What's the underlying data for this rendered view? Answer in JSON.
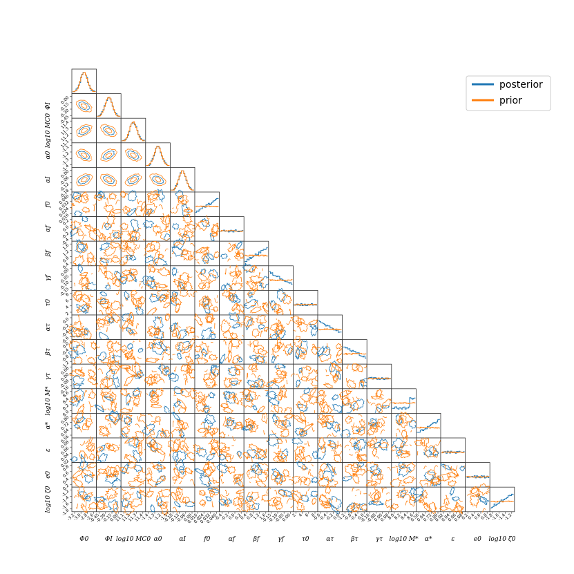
{
  "chart_data": {
    "type": "corner",
    "parameters": [
      {
        "label": "Φ0",
        "ticks": [
          "-3.2",
          "-3.0",
          "-2.8",
          "-2.6"
        ]
      },
      {
        "label": "ΦI",
        "ticks": [
          "-0.45",
          "-0.30",
          "-0.15",
          "0.00"
        ]
      },
      {
        "label": "log10 MC0",
        "ticks": [
          "11.1",
          "11.2",
          "11.3",
          "11.4"
        ]
      },
      {
        "label": "α0",
        "ticks": [
          "-1.4",
          "-1.3",
          "-1.2",
          "-1.1"
        ]
      },
      {
        "label": "αI",
        "ticks": [
          "-0.18",
          "-0.12",
          "-0.06",
          "0.00"
        ]
      },
      {
        "label": "f0",
        "ticks": [
          "0.016",
          "0.024",
          "0.032",
          "0.040"
        ]
      },
      {
        "label": "αf",
        "ticks": [
          "-0.4",
          "-0.2",
          "0.0",
          "0.2"
        ]
      },
      {
        "label": "βf",
        "ticks": [
          "0.4",
          "0.8",
          "1.2",
          "1.6"
        ]
      },
      {
        "label": "γf",
        "ticks": [
          "-0.15",
          "-0.10",
          "-0.05",
          "0.00"
        ]
      },
      {
        "label": "τ0",
        "ticks": [
          "2",
          "4",
          "6",
          "8"
        ]
      },
      {
        "label": "ατ",
        "ticks": [
          "-0.6",
          "-0.4",
          "-0.2",
          "0.0"
        ]
      },
      {
        "label": "βτ",
        "ticks": [
          "-1.2",
          "-0.8",
          "-0.4",
          "0.0"
        ]
      },
      {
        "label": "γτ",
        "ticks": [
          "-0.16",
          "-0.08",
          "0.00",
          "0.08"
        ]
      },
      {
        "label": "log10 M*",
        "ticks": [
          "8.0",
          "8.2",
          "8.4",
          "8.6"
        ]
      },
      {
        "label": "α*",
        "ticks": [
          "0.56",
          "0.64",
          "0.72",
          "0.80"
        ]
      },
      {
        "label": "ε",
        "ticks": [
          "0.02",
          "0.04",
          "0.06",
          "0.08"
        ]
      },
      {
        "label": "e0",
        "ticks": [
          "0.2",
          "0.4",
          "0.6",
          "0.8"
        ]
      },
      {
        "label": "log10 ζ0",
        "ticks": [
          "-1.8",
          "-1.6",
          "-1.4",
          "-1.2"
        ]
      }
    ],
    "series": [
      {
        "name": "posterior",
        "color": "#1f77b4"
      },
      {
        "name": "prior",
        "color": "#ff7f0e"
      }
    ],
    "legend_position": "top-right"
  }
}
